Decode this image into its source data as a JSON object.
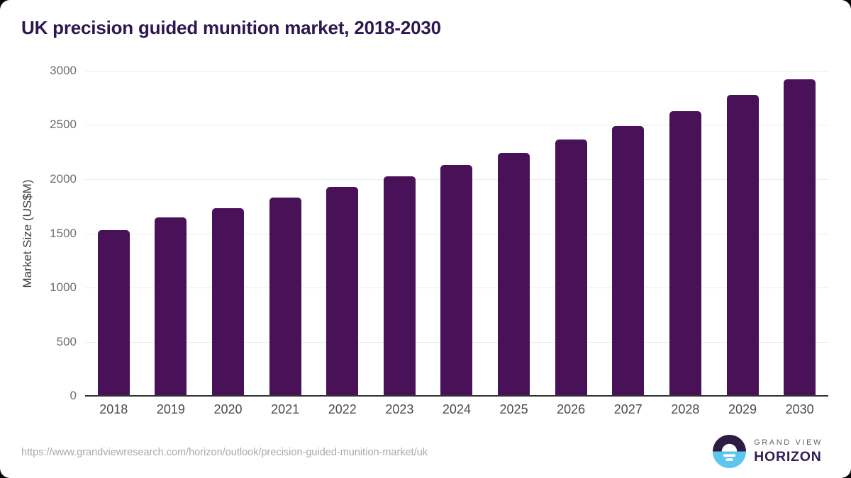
{
  "page": {
    "source_url": "https://www.grandviewresearch.com/horizon/outlook/precision-guided-munition-market/uk"
  },
  "logo": {
    "icon": "horizon-sunrise-icon",
    "top_text": "GRAND VIEW",
    "bottom_text": "HORIZON",
    "colors": {
      "dark": "#2d1d43",
      "blue": "#5cc6ee",
      "text_dark": "#332055",
      "text_gray": "#63606d"
    }
  },
  "chart_data": {
    "type": "bar",
    "title": "UK precision guided munition market, 2018-2030",
    "xlabel": "",
    "ylabel": "Market Size (US$M)",
    "categories": [
      "2018",
      "2019",
      "2020",
      "2021",
      "2022",
      "2023",
      "2024",
      "2025",
      "2026",
      "2027",
      "2028",
      "2029",
      "2030"
    ],
    "values": [
      1530,
      1645,
      1730,
      1830,
      1930,
      2025,
      2130,
      2245,
      2365,
      2490,
      2630,
      2775,
      2920
    ],
    "ylim": [
      0,
      3000
    ],
    "yticks": [
      0,
      500,
      1000,
      1500,
      2000,
      2500,
      3000
    ],
    "grid": true,
    "legend": "none",
    "bar_color": "#491158",
    "gridline_color": "#ececec",
    "axis_line_color": "#333333"
  }
}
